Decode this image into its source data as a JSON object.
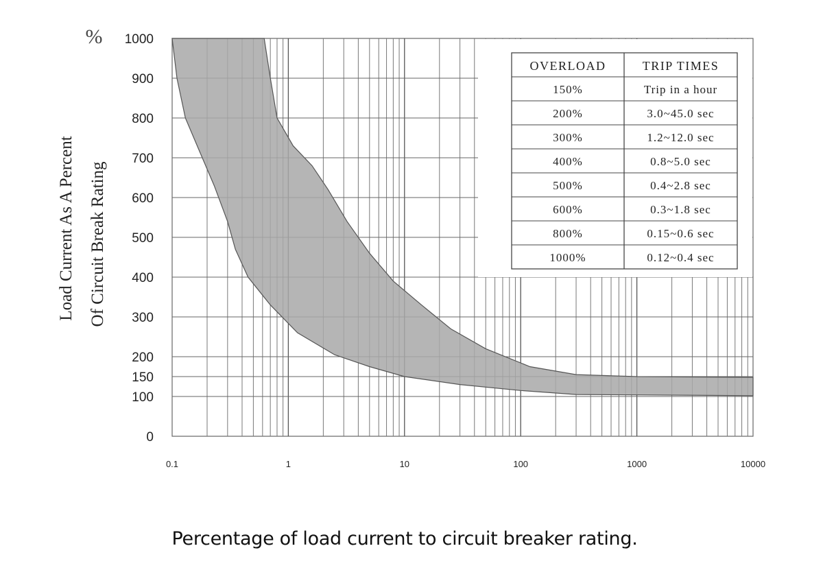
{
  "chart_data": {
    "type": "area",
    "y_unit": "%",
    "ylabel_line1": "Load Current As A Percent",
    "ylabel_line2": "Of Circuit Break Rating",
    "xscale": "log",
    "xlim": [
      0.1,
      10000
    ],
    "ylim": [
      0,
      1000
    ],
    "x_tick_labels": [
      "0.1",
      "1",
      "10",
      "100",
      "1000",
      "10000"
    ],
    "x_tick_values": [
      0.1,
      1,
      10,
      100,
      1000,
      10000
    ],
    "y_tick_labels": [
      "0",
      "100",
      "150",
      "200",
      "300",
      "400",
      "500",
      "600",
      "700",
      "800",
      "900",
      "1000"
    ],
    "y_tick_values": [
      0,
      100,
      150,
      200,
      300,
      400,
      500,
      600,
      700,
      800,
      900,
      1000
    ],
    "grid": true,
    "band_lower": [
      {
        "x": 0.1,
        "y": 1000
      },
      {
        "x": 0.11,
        "y": 900
      },
      {
        "x": 0.13,
        "y": 800
      },
      {
        "x": 0.17,
        "y": 720
      },
      {
        "x": 0.23,
        "y": 630
      },
      {
        "x": 0.3,
        "y": 540
      },
      {
        "x": 0.35,
        "y": 470
      },
      {
        "x": 0.45,
        "y": 400
      },
      {
        "x": 0.7,
        "y": 330
      },
      {
        "x": 1.2,
        "y": 260
      },
      {
        "x": 2.5,
        "y": 205
      },
      {
        "x": 5,
        "y": 175
      },
      {
        "x": 10,
        "y": 150
      },
      {
        "x": 30,
        "y": 130
      },
      {
        "x": 100,
        "y": 115
      },
      {
        "x": 300,
        "y": 105
      },
      {
        "x": 10000,
        "y": 102
      }
    ],
    "band_upper": [
      {
        "x": 0.62,
        "y": 1000
      },
      {
        "x": 0.7,
        "y": 900
      },
      {
        "x": 0.8,
        "y": 800
      },
      {
        "x": 1.1,
        "y": 730
      },
      {
        "x": 1.6,
        "y": 680
      },
      {
        "x": 2.2,
        "y": 620
      },
      {
        "x": 3.2,
        "y": 540
      },
      {
        "x": 5,
        "y": 460
      },
      {
        "x": 8,
        "y": 390
      },
      {
        "x": 14,
        "y": 330
      },
      {
        "x": 25,
        "y": 270
      },
      {
        "x": 50,
        "y": 220
      },
      {
        "x": 120,
        "y": 175
      },
      {
        "x": 300,
        "y": 155
      },
      {
        "x": 1000,
        "y": 150
      },
      {
        "x": 10000,
        "y": 148
      }
    ],
    "band_color": "#a8a8a8",
    "table": {
      "headers": [
        "OVERLOAD",
        "TRIP TIMES"
      ],
      "rows": [
        {
          "overload": "150%",
          "trip": "Trip in a hour"
        },
        {
          "overload": "200%",
          "trip": "3.0~45.0 sec"
        },
        {
          "overload": "300%",
          "trip": "1.2~12.0 sec"
        },
        {
          "overload": "400%",
          "trip": "0.8~5.0 sec"
        },
        {
          "overload": "500%",
          "trip": "0.4~2.8 sec"
        },
        {
          "overload": "600%",
          "trip": "0.3~1.8 sec"
        },
        {
          "overload": "800%",
          "trip": "0.15~0.6 sec"
        },
        {
          "overload": "1000%",
          "trip": "0.12~0.4 sec"
        }
      ]
    }
  },
  "caption": "Percentage of load current to circuit breaker rating."
}
